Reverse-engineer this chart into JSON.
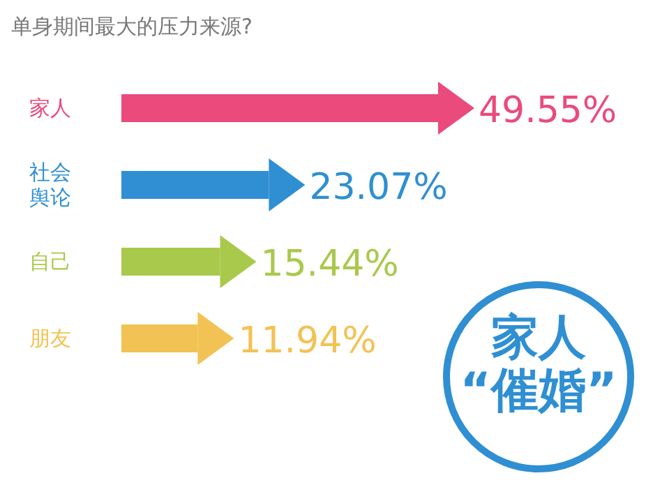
{
  "chart_data": {
    "type": "bar",
    "orientation": "horizontal",
    "title": "单身期间最大的压力来源?",
    "categories": [
      "家人",
      "社会舆论",
      "自己",
      "朋友"
    ],
    "values": [
      49.55,
      23.07,
      15.44,
      11.94
    ],
    "value_labels": [
      "49.55%",
      "23.07%",
      "15.44%",
      "11.94%"
    ],
    "colors": [
      "#ea4a7c",
      "#2f8fd2",
      "#a9c94c",
      "#f3c254"
    ],
    "annotations": [
      "家人",
      "“催婚”"
    ]
  }
}
